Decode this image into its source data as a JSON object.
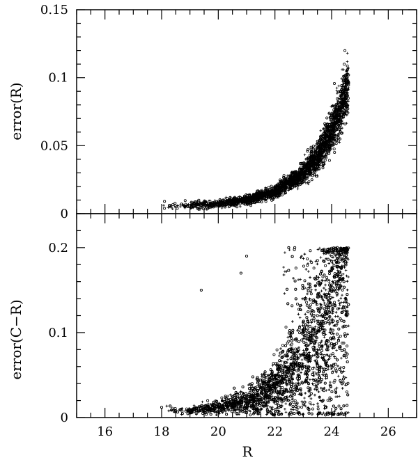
{
  "chart_data": {
    "type": "scatter",
    "shared_x": {
      "label": "R",
      "lim": [
        15,
        27
      ],
      "major_ticks": [
        16,
        18,
        20,
        22,
        24,
        26
      ],
      "minor_step": 0.5
    },
    "panels": [
      {
        "ylabel": "error(R)",
        "ylim": [
          0,
          0.15
        ],
        "major_ticks": [
          0,
          0.05,
          0.1,
          0.15
        ],
        "tick_labels": [
          "0",
          "0.05",
          "0.1",
          "0.15"
        ],
        "minor_step": 0.01,
        "trend": {
          "x_range": [
            18.0,
            24.6
          ],
          "curve": [
            [
              18.0,
              0.005
            ],
            [
              20.0,
              0.007
            ],
            [
              21.0,
              0.01
            ],
            [
              22.0,
              0.016
            ],
            [
              23.0,
              0.03
            ],
            [
              23.5,
              0.042
            ],
            [
              24.0,
              0.06
            ],
            [
              24.3,
              0.075
            ],
            [
              24.6,
              0.095
            ]
          ],
          "density": "increasing toward faint end"
        },
        "points": [
          [
            18.1,
            0.009
          ],
          [
            18.3,
            0.006
          ],
          [
            18.7,
            0.007
          ],
          [
            19.2,
            0.006
          ],
          [
            19.8,
            0.008
          ],
          [
            20.5,
            0.009
          ],
          [
            21.0,
            0.011
          ],
          [
            21.5,
            0.014
          ],
          [
            22.0,
            0.018
          ],
          [
            22.5,
            0.022
          ],
          [
            23.0,
            0.03
          ],
          [
            23.5,
            0.042
          ],
          [
            23.8,
            0.052
          ],
          [
            24.1,
            0.065
          ],
          [
            24.3,
            0.078
          ],
          [
            24.5,
            0.09
          ],
          [
            24.6,
            0.096
          ]
        ]
      },
      {
        "ylabel": "error(C−R)",
        "ylim": [
          0,
          0.24
        ],
        "major_ticks": [
          0,
          0.1,
          0.2
        ],
        "tick_labels": [
          "0",
          "0.1",
          "0.2"
        ],
        "minor_step": 0.02,
        "trend": {
          "x_range": [
            18.0,
            24.6
          ],
          "curve": [
            [
              18.0,
              0.01
            ],
            [
              19.0,
              0.008
            ],
            [
              20.0,
              0.012
            ],
            [
              21.0,
              0.02
            ],
            [
              22.0,
              0.035
            ],
            [
              22.5,
              0.05
            ],
            [
              23.0,
              0.065
            ],
            [
              23.5,
              0.085
            ],
            [
              24.0,
              0.11
            ],
            [
              24.4,
              0.16
            ],
            [
              24.6,
              0.2
            ]
          ],
          "density": "scattered cloud widening toward faint end, capped at 0.2"
        },
        "points": [
          [
            18.0,
            0.012
          ],
          [
            18.5,
            0.008
          ],
          [
            19.0,
            0.009
          ],
          [
            19.4,
            0.15
          ],
          [
            20.0,
            0.013
          ],
          [
            20.5,
            0.017
          ],
          [
            20.8,
            0.17
          ],
          [
            21.0,
            0.19
          ],
          [
            21.5,
            0.035
          ],
          [
            22.0,
            0.05
          ],
          [
            22.5,
            0.08
          ],
          [
            22.7,
            0.2
          ],
          [
            23.0,
            0.1
          ],
          [
            23.5,
            0.12
          ],
          [
            24.0,
            0.15
          ],
          [
            24.2,
            0.2
          ],
          [
            24.5,
            0.14
          ]
        ]
      }
    ]
  }
}
